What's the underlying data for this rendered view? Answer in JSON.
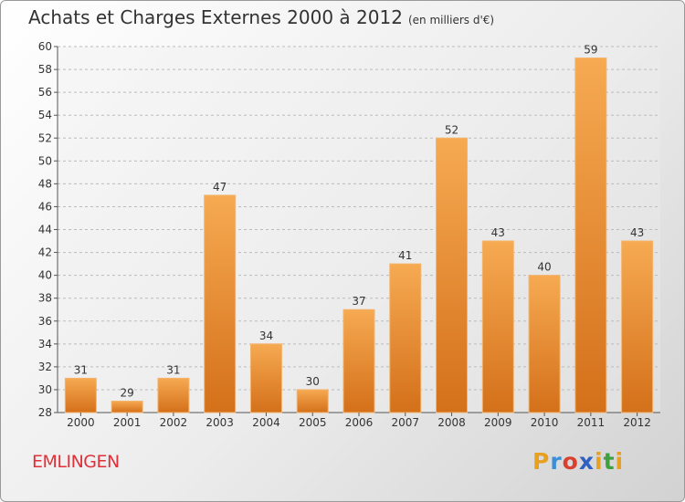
{
  "title": "Achats et Charges Externes 2000 à 2012",
  "unit": "(en milliers d'€)",
  "commune": "EMLINGEN",
  "logo": {
    "letters": [
      "P",
      "r",
      "o",
      "x",
      "i",
      "t",
      "i"
    ],
    "colors": [
      "#e8a020",
      "#3a8fd8",
      "#d84030",
      "#3060c0",
      "#e8a020",
      "#40a040",
      "#e8a020"
    ]
  },
  "colors": {
    "bar": "#ec8d2e",
    "title": "#333333",
    "commune": "#e0303a"
  },
  "chart_data": {
    "type": "bar",
    "categories": [
      "2000",
      "2001",
      "2002",
      "2003",
      "2004",
      "2005",
      "2006",
      "2007",
      "2008",
      "2009",
      "2010",
      "2011",
      "2012"
    ],
    "values": [
      31,
      29,
      31,
      47,
      34,
      30,
      37,
      41,
      52,
      43,
      40,
      59,
      43
    ],
    "ylim": [
      28,
      60
    ],
    "yticks": [
      28,
      30,
      32,
      34,
      36,
      38,
      40,
      42,
      44,
      46,
      48,
      50,
      52,
      54,
      56,
      58,
      60
    ],
    "grid": "dashed horizontal lines",
    "data_labels": true
  }
}
